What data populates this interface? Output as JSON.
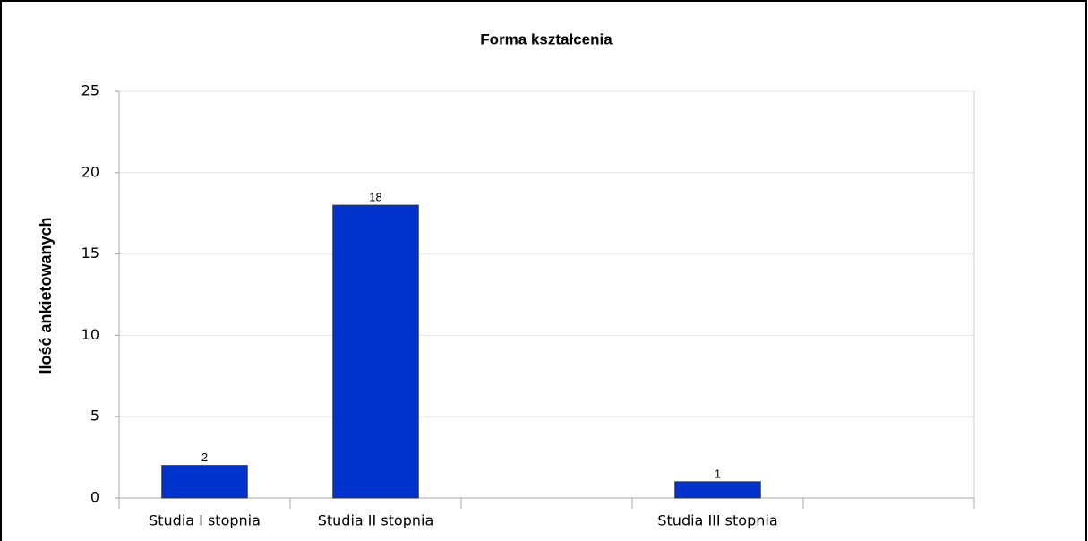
{
  "chart_data": {
    "type": "bar",
    "title": "Forma kształcenia",
    "y_label": "Ilość ankietowanych",
    "categories": [
      "Studia I stopnia",
      "Studia II stopnia",
      null,
      "Studia III stopnia",
      null
    ],
    "values": [
      2,
      18,
      null,
      1,
      null
    ],
    "color": "#0033cc",
    "ylim": [
      0,
      25
    ],
    "yticks": [
      0,
      5,
      10,
      15,
      20,
      25
    ],
    "grid": true
  }
}
